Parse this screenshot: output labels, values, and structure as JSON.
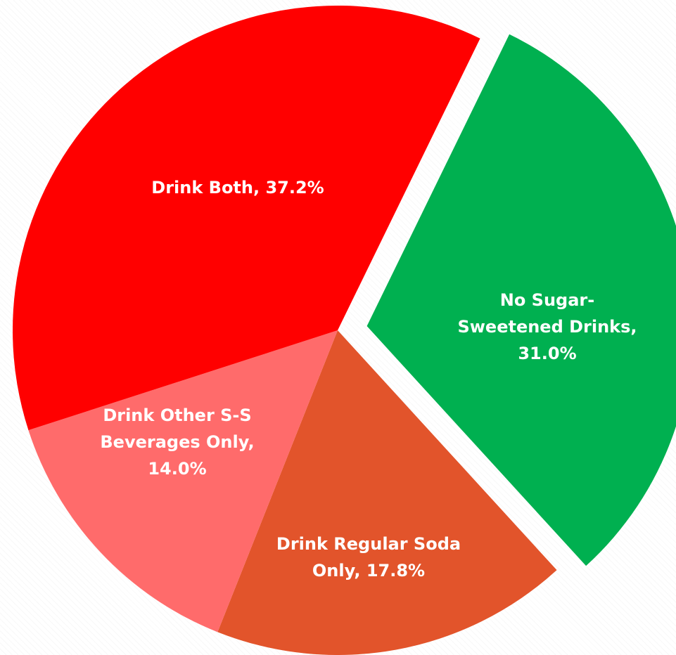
{
  "chart_data": {
    "type": "pie",
    "title": "",
    "slices": [
      {
        "label": "No Sugar-Sweetened Drinks",
        "value": 31.0,
        "value_text": "31.0%",
        "label_lines": [
          "No Sugar-",
          "Sweetened Drinks,",
          "31.0%"
        ],
        "color": "#00b050",
        "exploded": true
      },
      {
        "label": "Drink Regular Soda Only",
        "value": 17.8,
        "value_text": "17.8%",
        "label_lines": [
          "Drink Regular Soda",
          "Only, 17.8%"
        ],
        "color": "#e2542b",
        "exploded": false
      },
      {
        "label": "Drink Other S-S Beverages Only",
        "value": 14.0,
        "value_text": "14.0%",
        "label_lines": [
          "Drink Other S-S",
          "Beverages Only,",
          "14.0%"
        ],
        "color": "#ff6b6b",
        "exploded": false
      },
      {
        "label": "Drink Both",
        "value": 37.2,
        "value_text": "37.2%",
        "label_lines": [
          "Drink Both, 37.2%"
        ],
        "color": "#ff0000",
        "exploded": false
      }
    ],
    "start_angle_deg": 26,
    "direction": "clockwise",
    "legend": "none"
  }
}
